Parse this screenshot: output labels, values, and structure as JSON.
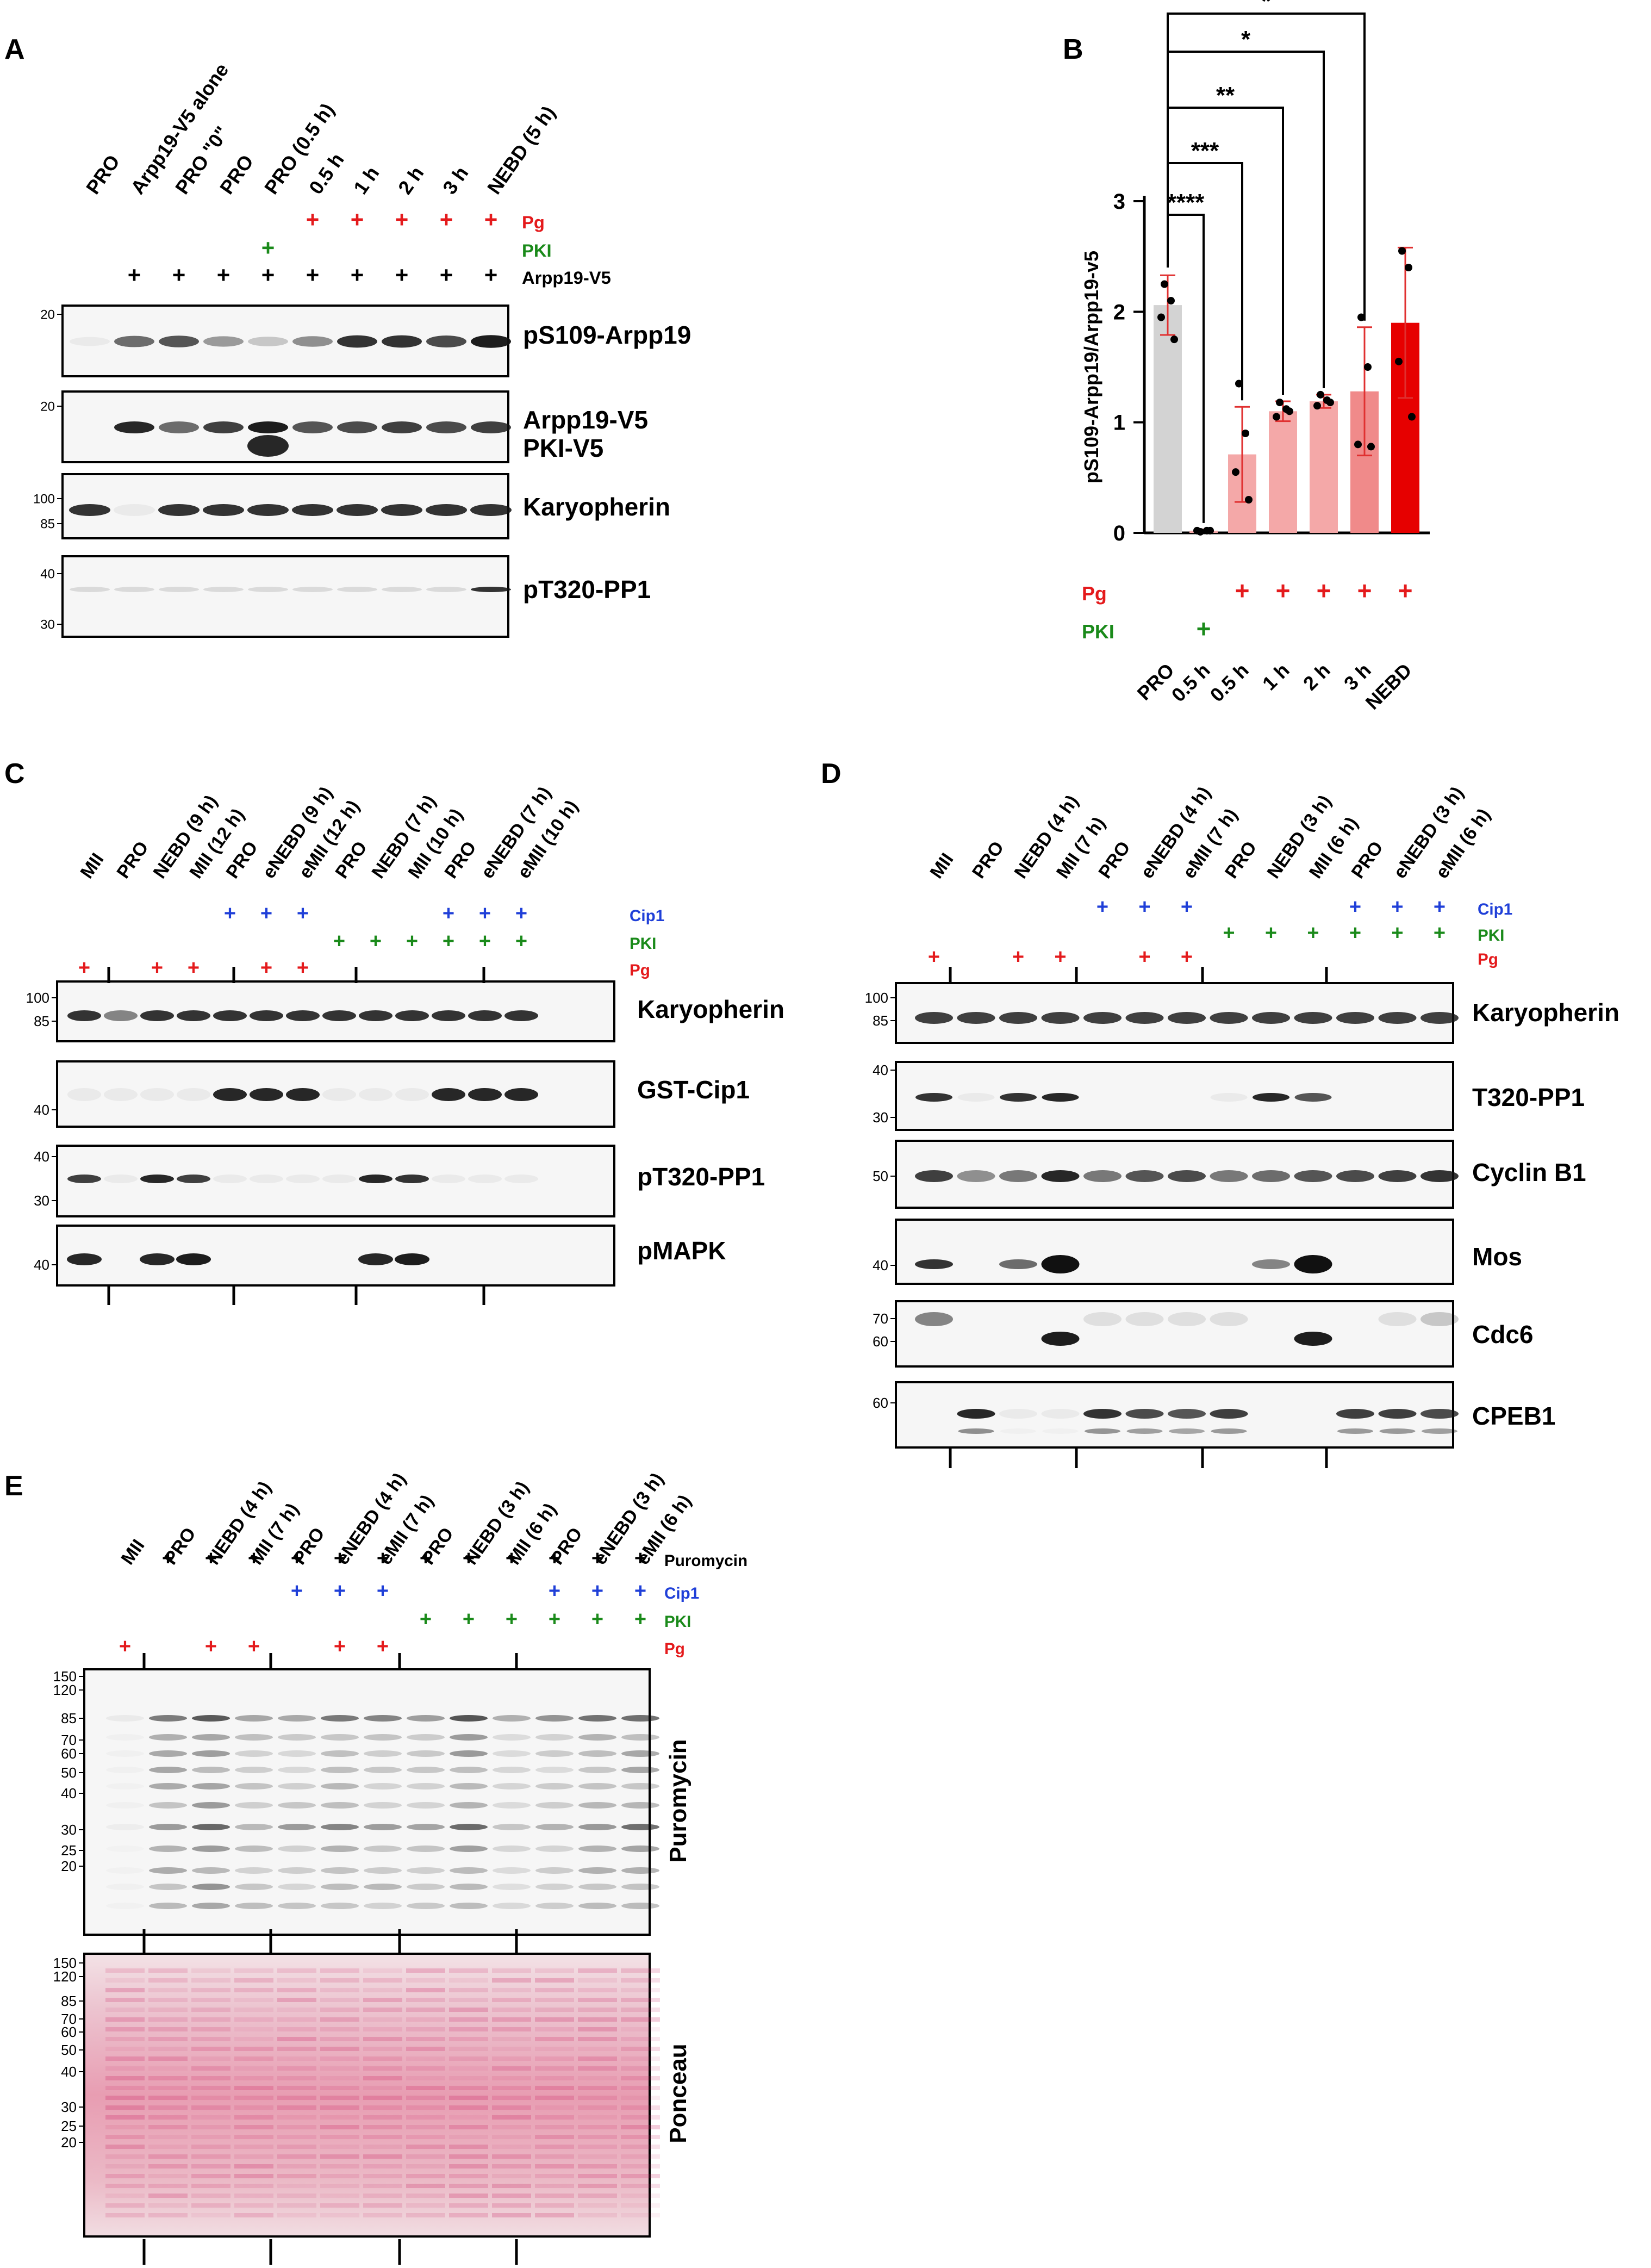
{
  "figure": {
    "panels": {
      "A": {
        "letter": "A",
        "lanes": [
          "PRO",
          "Arpp19-V5 alone",
          "PRO \"0\"",
          "PRO",
          "PRO (0.5 h)",
          "0.5 h",
          "1 h",
          "2 h",
          "3 h",
          "NEBD (5 h)"
        ],
        "treatments": [
          {
            "name": "Pg",
            "color": "#e41a1c",
            "marks": [
              0,
              0,
              0,
              0,
              0,
              1,
              1,
              1,
              1,
              1
            ]
          },
          {
            "name": "PKI",
            "color": "#1a8a1a",
            "marks": [
              0,
              0,
              0,
              0,
              1,
              0,
              0,
              0,
              0,
              0
            ]
          },
          {
            "name": "Arpp19-V5",
            "color": "#000000",
            "marks": [
              0,
              1,
              1,
              1,
              1,
              1,
              1,
              1,
              1,
              1
            ]
          }
        ],
        "blots": [
          {
            "label": "pS109-Arpp19",
            "markers": [
              "20"
            ]
          },
          {
            "label": "Arpp19-V5",
            "label2": "PKI-V5",
            "markers": [
              "20"
            ]
          },
          {
            "label": "Karyopherin",
            "markers": [
              "100",
              "85"
            ]
          },
          {
            "label": "pT320-PP1",
            "markers": [
              "40",
              "30"
            ]
          }
        ]
      },
      "B": {
        "letter": "B",
        "treatments": [
          {
            "name": "Pg",
            "color": "#e41a1c",
            "marks": [
              0,
              0,
              1,
              1,
              1,
              1,
              1
            ]
          },
          {
            "name": "PKI",
            "color": "#1a8a1a",
            "marks": [
              0,
              1,
              0,
              0,
              0,
              0,
              0
            ]
          }
        ]
      },
      "C": {
        "letter": "C",
        "lanes": [
          "MII",
          "PRO",
          "NEBD (9 h)",
          "MII (12 h)",
          "PRO",
          "eNEBD (9 h)",
          "eMII (12 h)",
          "PRO",
          "NEBD (7 h)",
          "MII (10 h)",
          "PRO",
          "eNEBD (7 h)",
          "eMII (10 h)"
        ],
        "treatments": [
          {
            "name": "Cip1",
            "color": "#1f3fd8",
            "marks": [
              0,
              0,
              0,
              0,
              1,
              1,
              1,
              0,
              0,
              0,
              1,
              1,
              1
            ]
          },
          {
            "name": "PKI",
            "color": "#1a8a1a",
            "marks": [
              0,
              0,
              0,
              0,
              0,
              0,
              0,
              1,
              1,
              1,
              1,
              1,
              1
            ]
          },
          {
            "name": "Pg",
            "color": "#e41a1c",
            "marks": [
              1,
              0,
              1,
              1,
              0,
              1,
              1,
              0,
              0,
              0,
              0,
              0,
              0
            ]
          }
        ],
        "blots": [
          {
            "label": "Karyopherin",
            "markers": [
              "100",
              "85"
            ]
          },
          {
            "label": "GST-Cip1",
            "markers": [
              "40"
            ]
          },
          {
            "label": "pT320-PP1",
            "markers": [
              "40",
              "30"
            ]
          },
          {
            "label": "pMAPK",
            "markers": [
              "40"
            ]
          }
        ]
      },
      "D": {
        "letter": "D",
        "lanes": [
          "MII",
          "PRO",
          "NEBD (4 h)",
          "MII (7 h)",
          "PRO",
          "eNEBD (4 h)",
          "eMII (7 h)",
          "PRO",
          "NEBD (3 h)",
          "MII (6 h)",
          "PRO",
          "eNEBD (3 h)",
          "eMII (6 h)"
        ],
        "treatments": [
          {
            "name": "Cip1",
            "color": "#1f3fd8",
            "marks": [
              0,
              0,
              0,
              0,
              1,
              1,
              1,
              0,
              0,
              0,
              1,
              1,
              1
            ]
          },
          {
            "name": "PKI",
            "color": "#1a8a1a",
            "marks": [
              0,
              0,
              0,
              0,
              0,
              0,
              0,
              1,
              1,
              1,
              1,
              1,
              1
            ]
          },
          {
            "name": "Pg",
            "color": "#e41a1c",
            "marks": [
              1,
              0,
              1,
              1,
              0,
              1,
              1,
              0,
              0,
              0,
              0,
              0,
              0
            ]
          }
        ],
        "blots": [
          {
            "label": "Karyopherin",
            "markers": [
              "100",
              "85"
            ]
          },
          {
            "label": "T320-PP1",
            "markers": [
              "40",
              "30"
            ]
          },
          {
            "label": "Cyclin B1",
            "markers": [
              "50"
            ]
          },
          {
            "label": "Mos",
            "markers": [
              "40"
            ]
          },
          {
            "label": "Cdc6",
            "markers": [
              "70",
              "60"
            ]
          },
          {
            "label": "CPEB1",
            "markers": [
              "60"
            ]
          }
        ]
      },
      "E": {
        "letter": "E",
        "lanes": [
          "MII",
          "PRO",
          "NEBD (4 h)",
          "MII (7 h)",
          "PRO",
          "eNEBD (4 h)",
          "eMII (7 h)",
          "PRO",
          "NEBD (3 h)",
          "MII (6 h)",
          "PRO",
          "eNEBD (3 h)",
          "eMII (6 h)"
        ],
        "treatments": [
          {
            "name": "Puromycin",
            "color": "#000000",
            "marks": [
              0,
              1,
              1,
              1,
              1,
              1,
              1,
              1,
              1,
              1,
              1,
              1,
              1
            ]
          },
          {
            "name": "Cip1",
            "color": "#1f3fd8",
            "marks": [
              0,
              0,
              0,
              0,
              1,
              1,
              1,
              0,
              0,
              0,
              1,
              1,
              1
            ]
          },
          {
            "name": "PKI",
            "color": "#1a8a1a",
            "marks": [
              0,
              0,
              0,
              0,
              0,
              0,
              0,
              1,
              1,
              1,
              1,
              1,
              1
            ]
          },
          {
            "name": "Pg",
            "color": "#e41a1c",
            "marks": [
              1,
              0,
              1,
              1,
              0,
              1,
              1,
              0,
              0,
              0,
              0,
              0,
              0
            ]
          }
        ],
        "blots": [
          {
            "label": "Puromycin",
            "markers": [
              "150",
              "120",
              "85",
              "70",
              "60",
              "50",
              "40",
              "30",
              "25",
              "20"
            ]
          },
          {
            "label": "Ponceau",
            "markers": [
              "150",
              "120",
              "85",
              "70",
              "60",
              "50",
              "40",
              "30",
              "25",
              "20"
            ]
          }
        ]
      }
    }
  },
  "chart_data": {
    "type": "bar",
    "categories": [
      "PRO",
      "0.5 h",
      "0.5 h",
      "1 h",
      "2 h",
      "3 h",
      "NEBD"
    ],
    "values": [
      2.06,
      0.02,
      0.71,
      1.1,
      1.19,
      1.28,
      1.9
    ],
    "errors": [
      0.27,
      0.01,
      0.43,
      0.09,
      0.06,
      0.58,
      0.68
    ],
    "points": [
      [
        2.25,
        2.1,
        1.95,
        1.75
      ],
      [
        0.01,
        0.02,
        0.02,
        0.02
      ],
      [
        1.35,
        0.9,
        0.55,
        0.3
      ],
      [
        1.18,
        1.12,
        1.05,
        1.1
      ],
      [
        1.25,
        1.2,
        1.15,
        1.18
      ],
      [
        1.95,
        1.5,
        0.8,
        0.78
      ],
      [
        2.55,
        2.4,
        1.55,
        1.05
      ]
    ],
    "bar_colors": [
      "#d3d3d3",
      "#f4a8a8",
      "#f4a8a8",
      "#f4a8a8",
      "#f4a8a8",
      "#f08a8a",
      "#e60000"
    ],
    "ylabel": "pS109-Arpp19/Arpp19-v5",
    "ylim": [
      0,
      3
    ],
    "yticks": [
      0,
      1,
      2,
      3
    ],
    "significance": [
      {
        "from": 0,
        "to": 1,
        "label": "****"
      },
      {
        "from": 0,
        "to": 2,
        "label": "***"
      },
      {
        "from": 0,
        "to": 3,
        "label": "**"
      },
      {
        "from": 0,
        "to": 4,
        "label": "*"
      },
      {
        "from": 0,
        "to": 5,
        "label": "*"
      }
    ],
    "grid": false,
    "legend": "none"
  }
}
